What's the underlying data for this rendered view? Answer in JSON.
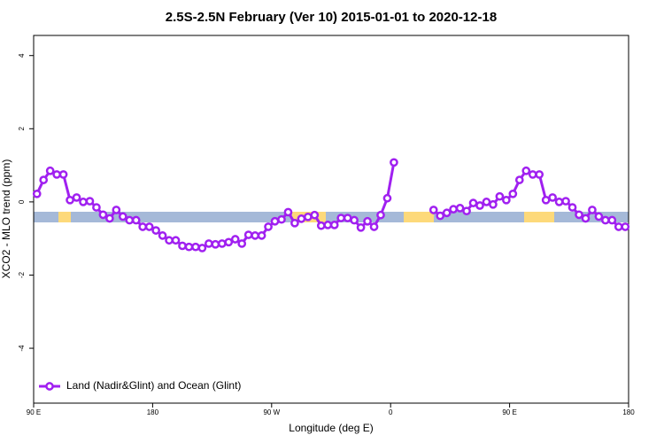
{
  "chart_data": {
    "type": "line",
    "title": "2.5S-2.5N February (Ver 10)   2015-01-01 to 2020-12-18",
    "x_label": "Longitude (deg E)",
    "y_label": "XCO2 - MLO trend (ppm)",
    "x": [
      92.5,
      97.5,
      102.5,
      107.5,
      112.5,
      117.5,
      122.5,
      127.5,
      132.5,
      137.5,
      142.5,
      147.5,
      152.5,
      157.5,
      162.5,
      167.5,
      172.5,
      177.5,
      182.5,
      187.5,
      192.5,
      197.5,
      202.5,
      207.5,
      212.5,
      217.5,
      222.5,
      227.5,
      232.5,
      237.5,
      242.5,
      247.5,
      252.5,
      257.5,
      262.5,
      267.5,
      272.5,
      277.5,
      282.5,
      287.5,
      292.5,
      297.5,
      302.5,
      307.5,
      312.5,
      317.5,
      322.5,
      327.5,
      332.5,
      337.5,
      342.5,
      347.5,
      352.5,
      357.5,
      362.5,
      367.5,
      372.5,
      377.5,
      382.5,
      387.5,
      392.5,
      397.5,
      402.5,
      407.5,
      412.5,
      417.5,
      422.5,
      427.5,
      432.5,
      437.5,
      442.5,
      447.5,
      452.5,
      457.5,
      462.5,
      467.5,
      472.5,
      477.5,
      482.5,
      487.5,
      492.5,
      497.5,
      502.5,
      507.5,
      512.5,
      517.5,
      522.5,
      527.5,
      532.5,
      537.5
    ],
    "series": [
      {
        "name": "Land (Nadir&Glint) and Ocean (Glint)",
        "color": "#a020f0",
        "values": [
          0.22,
          0.6,
          0.85,
          0.75,
          0.75,
          0.05,
          0.12,
          0.0,
          0.02,
          -0.15,
          -0.35,
          -0.45,
          -0.22,
          -0.4,
          -0.5,
          -0.5,
          -0.68,
          -0.68,
          -0.78,
          -0.92,
          -1.05,
          -1.05,
          -1.2,
          -1.23,
          -1.23,
          -1.26,
          -1.14,
          -1.16,
          -1.14,
          -1.1,
          -1.02,
          -1.14,
          -0.9,
          -0.92,
          -0.92,
          -0.68,
          -0.53,
          -0.48,
          -0.28,
          -0.58,
          -0.46,
          -0.41,
          -0.36,
          -0.65,
          -0.63,
          -0.63,
          -0.44,
          -0.44,
          -0.5,
          -0.7,
          -0.53,
          -0.68,
          -0.36,
          0.1,
          1.08,
          null,
          null,
          null,
          null,
          null,
          -0.22,
          -0.38,
          -0.3,
          -0.2,
          -0.17,
          -0.25,
          -0.03,
          -0.1,
          0.0,
          -0.07,
          0.15,
          0.05,
          0.22,
          0.6,
          0.85,
          0.75,
          0.75,
          0.05,
          0.12,
          0.0,
          0.02,
          -0.15,
          -0.35,
          -0.45,
          -0.22,
          -0.4,
          -0.5,
          -0.5,
          -0.68,
          -0.68
        ]
      }
    ],
    "xlim": [
      90,
      540
    ],
    "xticks": [
      {
        "value": 90,
        "label": "90 E"
      },
      {
        "value": 180,
        "label": "180"
      },
      {
        "value": 270,
        "label": "90 W"
      },
      {
        "value": 360,
        "label": "0"
      },
      {
        "value": 450,
        "label": "90 E"
      },
      {
        "value": 540,
        "label": "180"
      }
    ],
    "ylim": [
      -5.5,
      4.55
    ],
    "yticks": [
      -4,
      -2,
      0,
      2,
      4
    ],
    "legend": "bottom-left"
  }
}
